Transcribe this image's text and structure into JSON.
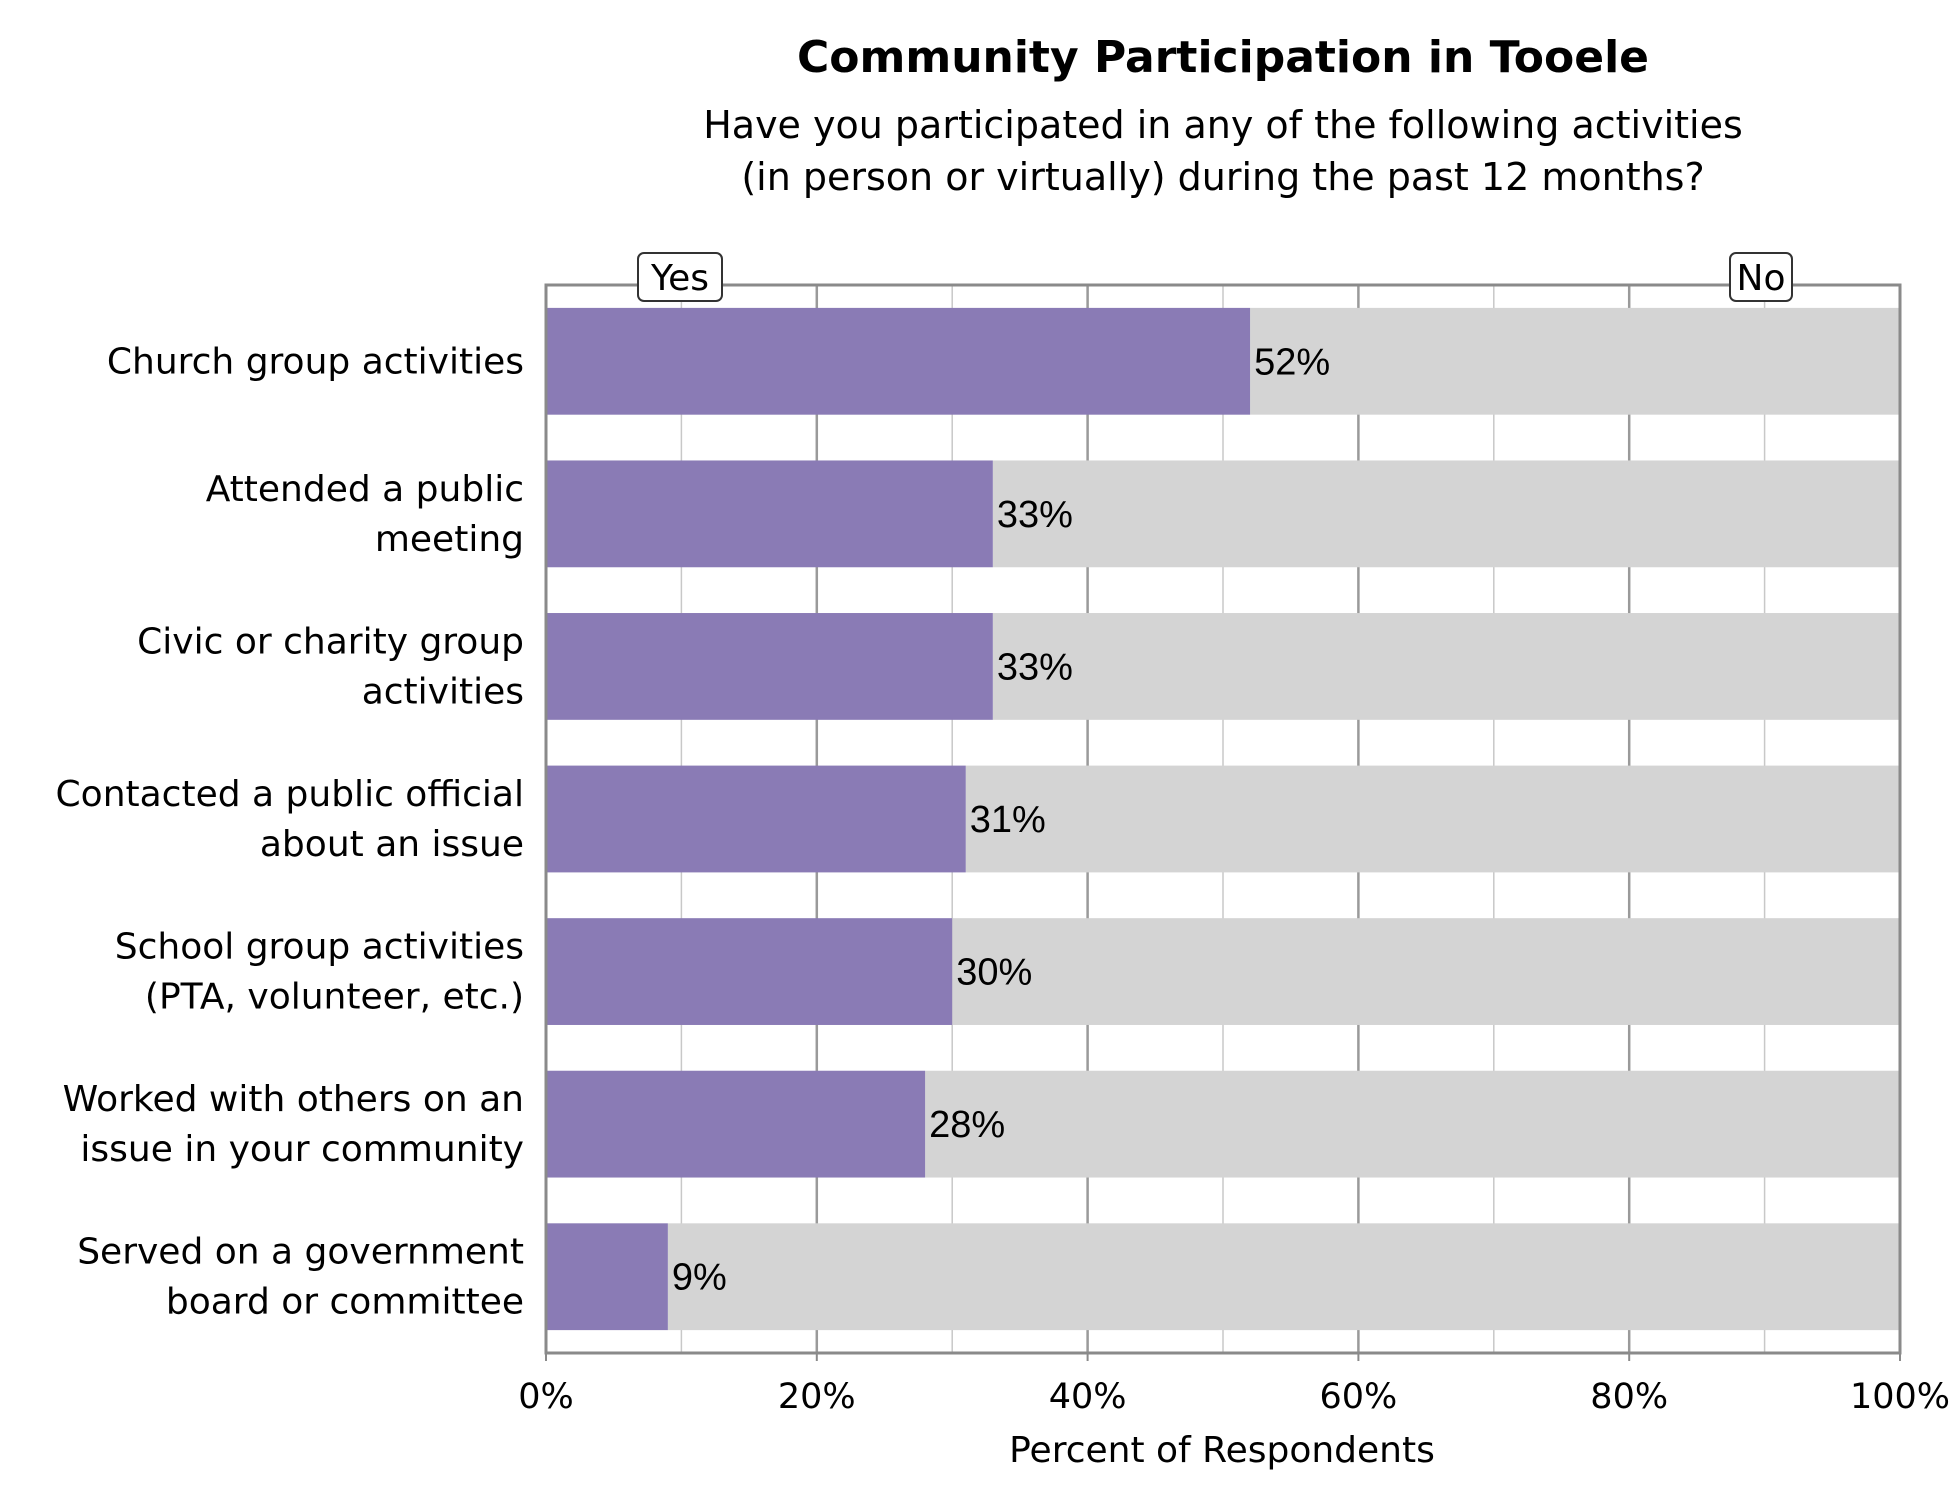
{
  "chart_data": {
    "type": "bar",
    "orientation": "horizontal",
    "stacked": true,
    "title": "Community Participation in Tooele",
    "subtitle_lines": [
      "Have you participated in any of the following activities",
      "(in person or virtually) during the past 12 months?"
    ],
    "categories": [
      [
        "Church group activities"
      ],
      [
        "Attended a public",
        "meeting"
      ],
      [
        "Civic or charity group",
        "activities"
      ],
      [
        "Contacted a public official",
        "about an issue"
      ],
      [
        "School group activities",
        "(PTA, volunteer, etc.)"
      ],
      [
        "Worked with others on an",
        "issue in your community"
      ],
      [
        "Served on a government",
        "board or committee"
      ]
    ],
    "series": [
      {
        "name": "Yes",
        "values": [
          52,
          33,
          33,
          31,
          30,
          28,
          9
        ],
        "color": "#8a7bb5"
      },
      {
        "name": "No",
        "values": [
          48,
          67,
          67,
          69,
          70,
          72,
          91
        ],
        "color": "#d4d4d4"
      }
    ],
    "data_labels": [
      "52%",
      "33%",
      "33%",
      "31%",
      "30%",
      "28%",
      "9%"
    ],
    "xlabel": "Percent of Respondents",
    "ylabel": "",
    "xlim": [
      0,
      100
    ],
    "x_ticks": [
      0,
      20,
      40,
      60,
      80,
      100
    ],
    "x_tick_labels": [
      "0%",
      "20%",
      "40%",
      "60%",
      "80%",
      "100%"
    ],
    "grid": true,
    "legend_placement": "top, labels at left and right of plot"
  }
}
